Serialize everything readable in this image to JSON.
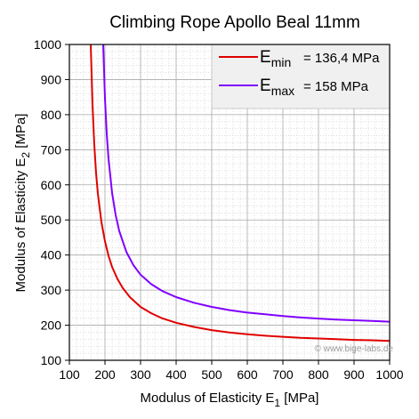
{
  "chart_data": {
    "type": "line",
    "title": "Climbing Rope Apollo Beal 11mm",
    "xlabel": {
      "base": "Modulus of Elasticity E",
      "sub": "1",
      "unit": " [MPa]"
    },
    "ylabel": {
      "base": "Modulus of Elasticity E",
      "sub": "2",
      "unit": " [MPa]"
    },
    "xlim": [
      100,
      1000
    ],
    "ylim": [
      100,
      1000
    ],
    "xticks": [
      100,
      200,
      300,
      400,
      500,
      600,
      700,
      800,
      900,
      1000
    ],
    "yticks": [
      100,
      200,
      300,
      400,
      500,
      600,
      700,
      800,
      900,
      1000
    ],
    "grid": true,
    "minor_grid": true,
    "legend_position": "top-right",
    "series": [
      {
        "name": "E_min",
        "legend": {
          "sym": "E",
          "sub": "min",
          "eq": "= 136,4 MPa"
        },
        "color": "#e00000",
        "x": [
          160,
          165,
          170,
          175,
          180,
          190,
          200,
          210,
          220,
          235,
          250,
          270,
          300,
          330,
          360,
          400,
          450,
          500,
          550,
          600,
          650,
          700,
          750,
          800,
          850,
          900,
          950,
          1000
        ],
        "y": [
          1000,
          828,
          714,
          633,
          575,
          494,
          439,
          398,
          366,
          332,
          306,
          280,
          252,
          234,
          220,
          207,
          195,
          186,
          179,
          174,
          170,
          167,
          164,
          162,
          160,
          158,
          157,
          155
        ]
      },
      {
        "name": "E_max",
        "legend": {
          "sym": "E",
          "sub": "max",
          "eq": "=  158   MPa"
        },
        "color": "#8000ff",
        "x": [
          195,
          200,
          205,
          210,
          220,
          230,
          240,
          260,
          280,
          300,
          330,
          360,
          400,
          450,
          500,
          550,
          600,
          650,
          700,
          750,
          800,
          850,
          900,
          950,
          1000
        ],
        "y": [
          1000,
          846,
          745,
          674,
          577,
          514,
          469,
          409,
          371,
          344,
          317,
          298,
          280,
          264,
          252,
          243,
          236,
          231,
          226,
          222,
          219,
          216,
          214,
          212,
          210
        ]
      }
    ]
  },
  "credit": "©  www.bige-labs.de"
}
